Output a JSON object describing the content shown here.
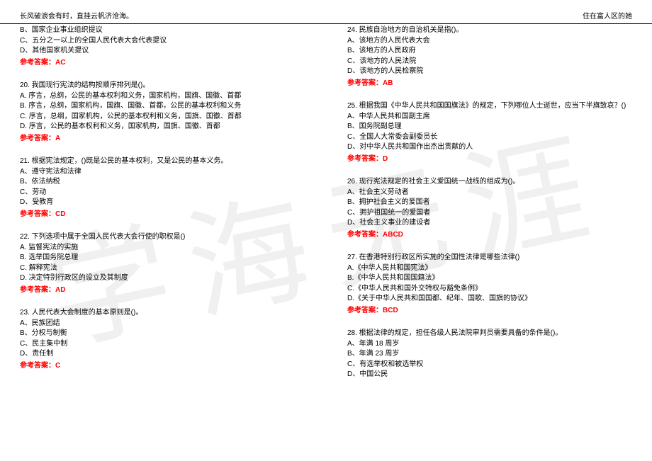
{
  "header": {
    "left": "长风破浪会有时，直挂云帆济沧海。",
    "right": "住在富人区的她"
  },
  "left_col": {
    "q19_remain": {
      "opts": [
        "B、国家企业事业组织提议",
        "C、五分之一以上的全国人民代表大会代表提议",
        "D、其他国家机关提议"
      ],
      "answer": "参考答案：AC"
    },
    "q20": {
      "stem": "20. 我国现行宪法的结构按顺序排列是()。",
      "opts": [
        "A. 序言，总纲，公民的基本权利和义务，国家机构，国旗、国徽、首都",
        "B. 序言，总纲，国家机构，国旗、国徽、首都，公民的基本权利和义务",
        "C. 序言，总纲，国家机构，公民的基本权利和义务，国旗、国徽、首都",
        "D. 序言，公民的基本权利和义务，国家机构，国旗、国徽、首都"
      ],
      "answer": "参考答案：A"
    },
    "q21": {
      "stem": "21. 根据宪法规定，()既是公民的基本权利，又是公民的基本义务。",
      "opts": [
        "A、遵守宪法和法律",
        "B、依法纳税",
        "C、劳动",
        "D、受教育"
      ],
      "answer": "参考答案：CD"
    },
    "q22": {
      "stem": "22. 下列选项中属于全国人民代表大会行使的职权是()",
      "opts": [
        "A. 监督宪法的实施",
        "B. 选举国务院总理",
        "C. 解释宪法",
        "D. 决定特别行政区的设立及其制度"
      ],
      "answer": "参考答案：AD"
    },
    "q23": {
      "stem": "23. 人民代表大会制度的基本原则是()。",
      "opts": [
        "A、民族团结",
        "B、分权与制衡",
        "C、民主集中制",
        "D、责任制"
      ],
      "answer": "参考答案：C"
    }
  },
  "right_col": {
    "q24": {
      "stem": "24. 民族自治地方的自治机关是指()。",
      "opts": [
        "A、该地方的人民代表大会",
        "B、该地方的人民政府",
        "C、该地方的人民法院",
        "D、该地方的人民检察院"
      ],
      "answer": "参考答案：AB"
    },
    "q25": {
      "stem": "25. 根据我国《中华人民共和国国旗法》的规定，下列哪位人士逝世，应当下半旗致哀？()",
      "opts": [
        "A、中华人民共和国副主席",
        "B、国务院副总理",
        "C、全国人大常委会副委员长",
        "D、对中华人民共和国作出杰出贡献的人"
      ],
      "answer": "参考答案：D"
    },
    "q26": {
      "stem": "26. 现行宪法规定的社会主义爱国统一战线的组成为()。",
      "opts": [
        "A、社会主义劳动者",
        "B、拥护社会主义的爱国者",
        "C、拥护祖国统一的爱国者",
        "D、社会主义事业的建设者"
      ],
      "answer": "参考答案：ABCD"
    },
    "q27": {
      "stem": "27. 在香港特别行政区所实施的全国性法律是哪些法律()",
      "opts": [
        "A.《中华人民共和国宪法》",
        "B.《中华人民共和国国籍法》",
        "C.《中华人民共和国外交特权与豁免条例》",
        "D.《关于中华人民共和国国都、纪年、国歌、国旗的协议》"
      ],
      "answer": "参考答案：BCD"
    },
    "q28": {
      "stem": "28. 根据法律的规定，担任各级人民法院审判员需要具备的条件是()。",
      "opts": [
        "A、年满 18 周岁",
        "B、年满 23 周岁",
        "C、有选举权和被选举权",
        "D、中国公民"
      ]
    }
  }
}
